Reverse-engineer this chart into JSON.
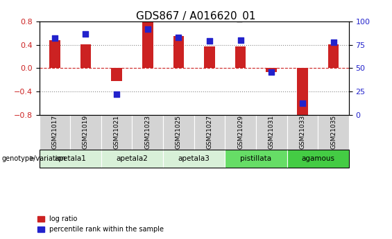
{
  "title": "GDS867 / A016620_01",
  "samples": [
    "GSM21017",
    "GSM21019",
    "GSM21021",
    "GSM21023",
    "GSM21025",
    "GSM21027",
    "GSM21029",
    "GSM21031",
    "GSM21033",
    "GSM21035"
  ],
  "log_ratio": [
    0.48,
    0.41,
    -0.22,
    0.8,
    0.55,
    0.37,
    0.37,
    -0.07,
    -0.84,
    0.41
  ],
  "percentile": [
    82,
    87,
    22,
    92,
    83,
    79,
    80,
    46,
    12,
    78
  ],
  "ylim_left": [
    -0.8,
    0.8
  ],
  "ylim_right": [
    0,
    100
  ],
  "yticks_left": [
    -0.8,
    -0.4,
    0.0,
    0.4,
    0.8
  ],
  "yticks_right": [
    0,
    25,
    50,
    75,
    100
  ],
  "hlines": [
    -0.4,
    0.0,
    0.4
  ],
  "bar_color": "#cc2222",
  "dot_color": "#2222cc",
  "groups": [
    {
      "label": "apetala1",
      "start": 0,
      "end": 2,
      "color": "#d8f0d8"
    },
    {
      "label": "apetala2",
      "start": 2,
      "end": 4,
      "color": "#d8f0d8"
    },
    {
      "label": "apetala3",
      "start": 4,
      "end": 6,
      "color": "#d8f0d8"
    },
    {
      "label": "pistillata",
      "start": 6,
      "end": 8,
      "color": "#66dd66"
    },
    {
      "label": "agamous",
      "start": 8,
      "end": 10,
      "color": "#44cc44"
    }
  ],
  "legend_label_bar": "log ratio",
  "legend_label_dot": "percentile rank within the sample",
  "genotype_label": "genotype/variation",
  "background_plot": "#ffffff",
  "background_sample": "#d4d4d4",
  "grid_color": "#888888",
  "zero_line_color": "#cc2222",
  "title_fontsize": 11,
  "axis_fontsize": 8
}
